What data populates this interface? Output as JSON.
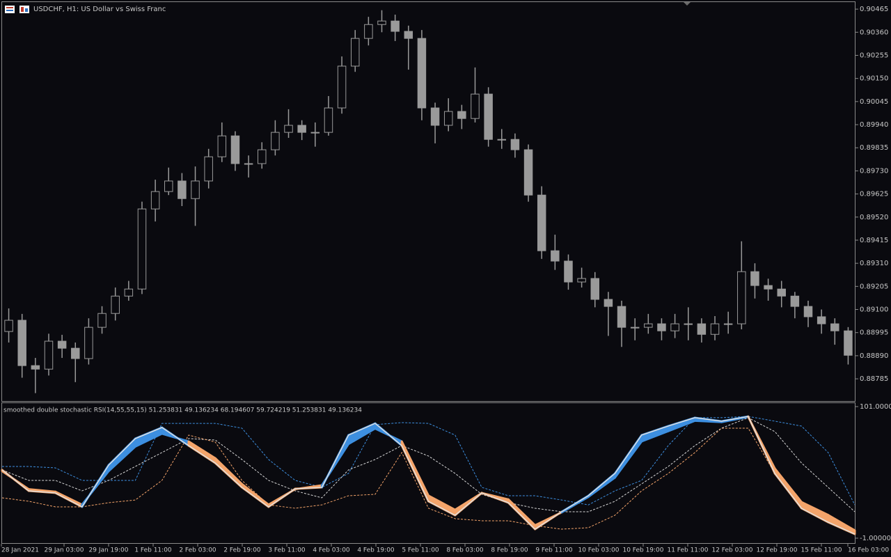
{
  "chart_data": [
    {
      "type": "candlestick",
      "title": "USDCHF, H1:  US Dollar vs Swiss Franc",
      "color": "#9a9a9a",
      "ylim": [
        0.88684,
        0.90497
      ],
      "yticks": [
        0.90465,
        {
          "value": 0.9036,
          "label": "0.90360"
        },
        0.90255,
        {
          "value": 0.9015,
          "label": "0.90150"
        },
        0.90045,
        {
          "value": 0.8994,
          "label": "0.89940"
        },
        0.89835,
        {
          "value": 0.8973,
          "label": "0.89730"
        },
        0.89625,
        {
          "value": 0.8952,
          "label": "0.89520"
        },
        0.89415,
        {
          "value": 0.8931,
          "label": "0.89310"
        },
        0.89205,
        {
          "value": 0.891,
          "label": "0.89100"
        },
        0.88995,
        {
          "value": 0.8889,
          "label": "0.88890"
        },
        0.88785
      ],
      "xtick_labels": [
        "28 Jan 2021",
        "29 Jan 03:00",
        "29 Jan 19:00",
        "1 Feb 11:00",
        "2 Feb 03:00",
        "2 Feb 19:00",
        "3 Feb 11:00",
        "4 Feb 03:00",
        "4 Feb 19:00",
        "5 Feb 11:00",
        "8 Feb 03:00",
        "8 Feb 19:00",
        "9 Feb 11:00",
        "10 Feb 03:00",
        "10 Feb 19:00",
        "11 Feb 11:00",
        "12 Feb 03:00",
        "12 Feb 19:00",
        "15 Feb 11:00",
        "16 Feb 03:00"
      ],
      "open": [
        0.89,
        0.89051,
        0.88845,
        0.88829,
        0.88956,
        0.88924,
        0.88877,
        0.89019,
        0.89082,
        0.89161,
        0.89193,
        0.89557,
        0.89636,
        0.89684,
        0.89604,
        0.89684,
        0.89794,
        0.89889,
        0.89763,
        0.89763,
        0.89826,
        0.89905,
        0.89937,
        0.89905,
        0.89905,
        0.90016,
        0.90206,
        0.90332,
        0.90395,
        0.90411,
        0.90364,
        0.90332,
        0.90016,
        0.89937,
        0.9,
        0.89968,
        0.90079,
        0.89873,
        0.89873,
        0.89826,
        0.8962,
        0.89367,
        0.8932,
        0.89225,
        0.89241,
        0.89146,
        0.89114,
        0.89019,
        0.89019,
        0.89035,
        0.89003,
        0.89035,
        0.89035,
        0.88987,
        0.89035,
        0.89035,
        0.89272,
        0.89209,
        0.89193,
        0.89161,
        0.89114,
        0.89067,
        0.89035,
        0.89003
      ],
      "high": [
        0.89105,
        0.8908,
        0.8888,
        0.8899,
        0.88985,
        0.8895,
        0.8906,
        0.89115,
        0.892,
        0.8923,
        0.8959,
        0.8969,
        0.89745,
        0.8972,
        0.8975,
        0.8983,
        0.8995,
        0.8991,
        0.898,
        0.8986,
        0.8996,
        0.9001,
        0.8996,
        0.8995,
        0.9007,
        0.9025,
        0.9037,
        0.9043,
        0.9046,
        0.9044,
        0.9039,
        0.9037,
        0.9004,
        0.9006,
        0.9003,
        0.902,
        0.9011,
        0.8992,
        0.899,
        0.8985,
        0.8966,
        0.8944,
        0.8935,
        0.8929,
        0.8927,
        0.8918,
        0.8914,
        0.8906,
        0.8908,
        0.8906,
        0.8908,
        0.8911,
        0.8906,
        0.8907,
        0.8909,
        0.8941,
        0.8931,
        0.8924,
        0.8923,
        0.8918,
        0.8914,
        0.891,
        0.8906,
        0.8902
      ],
      "low": [
        0.8895,
        0.8879,
        0.8872,
        0.888,
        0.8888,
        0.8877,
        0.8885,
        0.8899,
        0.8905,
        0.8914,
        0.8917,
        0.895,
        0.8962,
        0.8957,
        0.8948,
        0.8965,
        0.8977,
        0.8973,
        0.897,
        0.8974,
        0.898,
        0.8988,
        0.8987,
        0.8984,
        0.8989,
        0.8999,
        0.9018,
        0.903,
        0.9036,
        0.9032,
        0.9019,
        0.8996,
        0.89855,
        0.8991,
        0.8992,
        0.8995,
        0.8984,
        0.8983,
        0.8979,
        0.8959,
        0.8933,
        0.8928,
        0.8919,
        0.892,
        0.8911,
        0.8898,
        0.8893,
        0.8896,
        0.8899,
        0.8896,
        0.8897,
        0.8896,
        0.8895,
        0.8896,
        0.8899,
        0.8901,
        0.8915,
        0.8914,
        0.8911,
        0.8906,
        0.8902,
        0.8899,
        0.8894,
        0.8885
      ],
      "close": [
        0.89051,
        0.88845,
        0.88829,
        0.88956,
        0.88924,
        0.88877,
        0.89019,
        0.89082,
        0.89161,
        0.89193,
        0.89557,
        0.89636,
        0.89684,
        0.89604,
        0.89684,
        0.89794,
        0.89889,
        0.89763,
        0.89763,
        0.89826,
        0.89905,
        0.89937,
        0.89905,
        0.89905,
        0.90016,
        0.90206,
        0.90332,
        0.90395,
        0.90411,
        0.90364,
        0.90332,
        0.90016,
        0.89937,
        0.9,
        0.89968,
        0.90079,
        0.89873,
        0.89873,
        0.89826,
        0.8962,
        0.89367,
        0.8932,
        0.89225,
        0.89241,
        0.89146,
        0.89114,
        0.89019,
        0.89019,
        0.89035,
        0.89003,
        0.89035,
        0.89035,
        0.88987,
        0.89035,
        0.89035,
        0.89272,
        0.89209,
        0.89193,
        0.89161,
        0.89114,
        0.89067,
        0.89035,
        0.89003,
        0.88892
      ]
    },
    {
      "type": "line",
      "title": "smoothed double stochastic RSI(14,55,55,15) 51.253831 49.136234 68.194607 59.724219 51.253831 49.136234",
      "ylim": [
        -4.8,
        103.7
      ],
      "yticks": [
        {
          "value": 101,
          "label": "101.000000"
        },
        {
          "value": -1,
          "label": "-1.000000"
        }
      ],
      "up_color": "#3d8fe0",
      "down_color": "#f4a46a",
      "main": {
        "color": "#e0e0e0",
        "values": [
          51.9,
          35.7,
          34.1,
          23.3,
          55.7,
          76.2,
          84.8,
          70.8,
          57.3,
          38.4,
          23.3,
          37.3,
          38.4,
          78.9,
          88,
          70.8,
          27.6,
          16.8,
          34.1,
          26.5,
          6,
          19.5,
          31.9,
          49.2,
          78.9,
          85.9,
          92.4,
          89.7,
          93.4,
          49.2,
          22.2,
          11.4,
          2.2
        ]
      },
      "signal": {
        "values": [
          51,
          37,
          35,
          25,
          51,
          70,
          80,
          74,
          61,
          41,
          25,
          37,
          40,
          72,
          84,
          74,
          32,
          21,
          34,
          29,
          9,
          19,
          31,
          46,
          74,
          82,
          90,
          89,
          93,
          53,
          27,
          17,
          5
        ]
      },
      "series": [
        {
          "color": "#3d8fe0",
          "line_style": "dashed",
          "values": [
            54.6,
            54.6,
            53.5,
            43.8,
            43.8,
            43.8,
            88,
            88,
            88,
            84.3,
            60,
            43.8,
            38.4,
            49.2,
            87,
            88.6,
            88,
            78.9,
            38.4,
            31.9,
            31.9,
            28.6,
            24.8,
            35.7,
            43.8,
            70.8,
            92.4,
            92.4,
            93.4,
            89.7,
            85.9,
            65.4,
            24.8
          ]
        },
        {
          "color": "#d8d8d8",
          "line_style": "dashed",
          "values": [
            51.9,
            43.8,
            43.8,
            35.7,
            43.8,
            54.6,
            65.4,
            76.2,
            75.1,
            60,
            43.8,
            35.7,
            30.3,
            51.9,
            60,
            70.8,
            62.7,
            49.2,
            33,
            26.5,
            22.2,
            19.5,
            19.5,
            27.6,
            41.1,
            54.6,
            70.8,
            84.3,
            92.4,
            81.6,
            57.3,
            38.4,
            19.5
          ]
        },
        {
          "color": "#f4a46a",
          "line_style": "dashed",
          "values": [
            30.3,
            27.6,
            23.3,
            23.3,
            26.5,
            28.6,
            43.8,
            78.9,
            73.5,
            43.8,
            24.8,
            22.2,
            24.8,
            31.9,
            33,
            65.4,
            22.2,
            14.1,
            12.5,
            12.5,
            8.7,
            6,
            7.1,
            16.8,
            35.7,
            49.2,
            65.4,
            84.3,
            84.3,
            49.2,
            22.2,
            11.4,
            1.7
          ]
        }
      ]
    }
  ]
}
